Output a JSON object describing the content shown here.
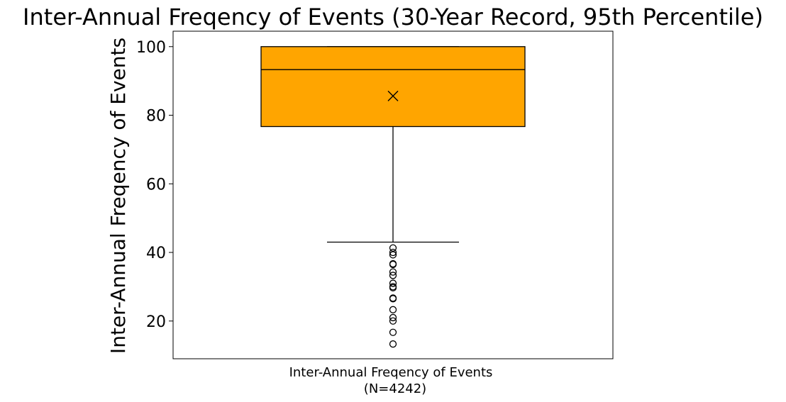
{
  "chart_data": {
    "type": "box",
    "title": "Inter-Annual Freqency of Events (30-Year Record, 95th Percentile)",
    "ylabel": "Inter-Annual Freqency of Events",
    "xlabel": "",
    "category_label": "Inter-Annual Freqency of Events",
    "category_sublabel": "(N=4242)",
    "ylim": [
      9,
      104.5
    ],
    "yticks": [
      20,
      40,
      60,
      80,
      100
    ],
    "grid": false,
    "box": {
      "q1": 76.7,
      "median": 93.3,
      "q3": 100,
      "whisker_low": 43.0,
      "whisker_high": 100,
      "mean": 85.6,
      "outliers": [
        41.3,
        40.0,
        39.3,
        36.7,
        36.5,
        34.3,
        33.3,
        31.0,
        30.0,
        29.7,
        26.7,
        26.5,
        23.3,
        21.0,
        20.0,
        16.7,
        13.3
      ]
    },
    "colors": {
      "box_fill": "#FFA500",
      "edge": "#000000"
    }
  }
}
